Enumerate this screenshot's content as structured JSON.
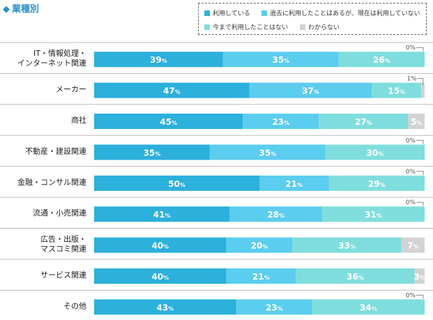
{
  "header": {
    "title": "業種別"
  },
  "chart_data": {
    "type": "bar",
    "orientation": "horizontal",
    "stacked": true,
    "title": "業種別",
    "categories": [
      "IT・情報処理・\nインターネット関連",
      "メーカー",
      "商社",
      "不動産・建設関連",
      "金融・コンサル関連",
      "流通・小売関連",
      "広告・出版・\nマスコミ関連",
      "サービス関連",
      "その他"
    ],
    "series": [
      {
        "name": "利用している",
        "color": "#2cb0dc",
        "values": [
          39,
          47,
          45,
          35,
          50,
          41,
          40,
          40,
          43
        ]
      },
      {
        "name": "過去に利用したことはあるが、現在は利用していない",
        "color": "#5bcdee",
        "values": [
          35,
          37,
          23,
          35,
          21,
          28,
          20,
          21,
          23
        ]
      },
      {
        "name": "今まで利用したことはない",
        "color": "#7fdedd",
        "values": [
          26,
          15,
          27,
          30,
          29,
          31,
          33,
          36,
          34
        ]
      },
      {
        "name": "わからない",
        "color": "#d3d3d3",
        "values": [
          0,
          1,
          5,
          0,
          0,
          0,
          7,
          3,
          0
        ]
      }
    ],
    "xlim": [
      0,
      100
    ],
    "unit": "%",
    "legend_position": "top-right",
    "grid": false
  }
}
